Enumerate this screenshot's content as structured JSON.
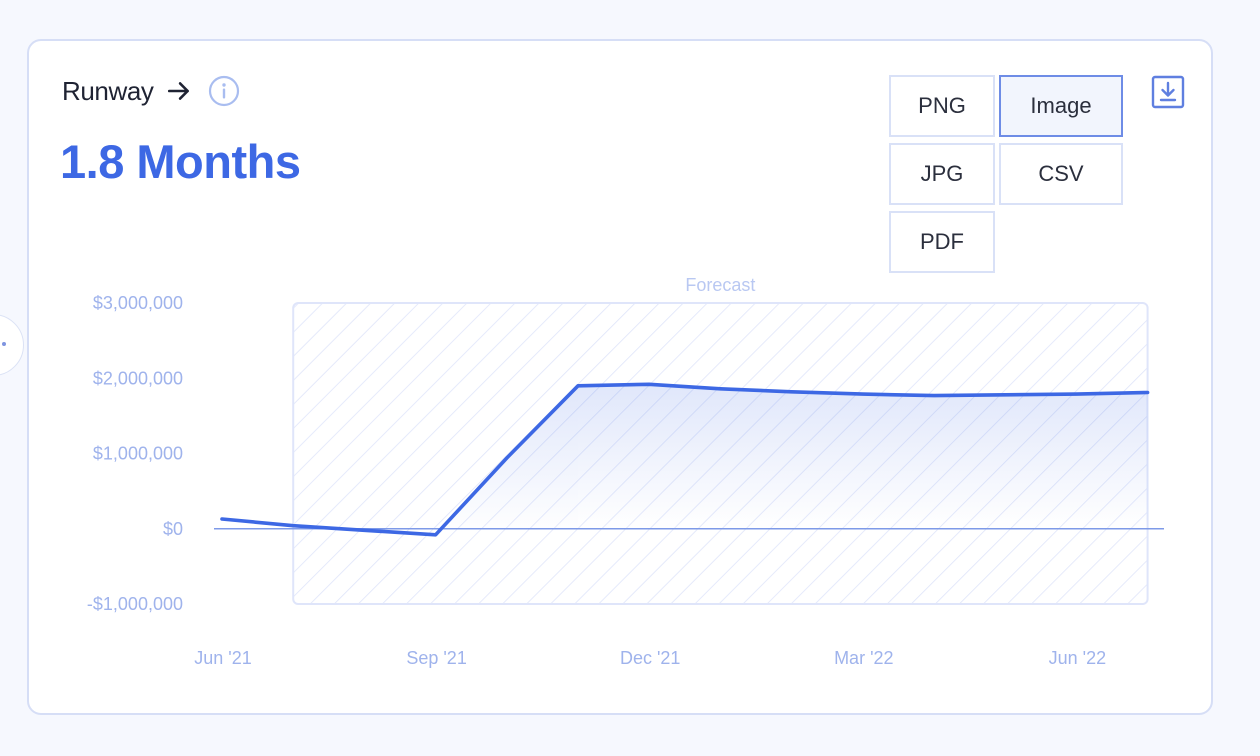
{
  "card": {
    "title": "Runway",
    "metric": "1.8 Months"
  },
  "export": {
    "options": [
      "PNG",
      "Image",
      "JPG",
      "CSV",
      "PDF"
    ],
    "selected": "Image"
  },
  "icons": {
    "arrow": "arrow-right-icon",
    "info": "info-icon",
    "download": "download-icon"
  },
  "colors": {
    "accent": "#3d68e4",
    "axis_text": "#9fb3ec",
    "forecast_hatch": "#dfe5fa",
    "title_text": "#1f2333"
  },
  "chart_data": {
    "type": "line",
    "forecast_label": "Forecast",
    "x_tick_labels": [
      "Jun '21",
      "Sep '21",
      "Dec '21",
      "Mar '22",
      "Jun '22"
    ],
    "y_tick_labels": [
      "$3,000,000",
      "$2,000,000",
      "$1,000,000",
      "$0",
      "-$1,000,000"
    ],
    "y_ticks": [
      3000000,
      2000000,
      1000000,
      0,
      -1000000
    ],
    "ylim": [
      -1000000,
      3000000
    ],
    "x_range_months": [
      "2021-06",
      "2022-07"
    ],
    "forecast_range": [
      "2021-07",
      "2022-07"
    ],
    "series": [
      {
        "x": [
          "2021-06",
          "2021-07",
          "2021-08",
          "2021-09",
          "2021-10",
          "2021-11",
          "2021-12",
          "2022-01",
          "2022-02",
          "2022-03",
          "2022-04",
          "2022-05",
          "2022-06",
          "2022-07"
        ],
        "values": [
          130000,
          40000,
          -20000,
          -80000,
          940000,
          1900000,
          1920000,
          1860000,
          1820000,
          1790000,
          1770000,
          1780000,
          1790000,
          1810000
        ]
      }
    ],
    "grid": false,
    "legend": "none"
  }
}
